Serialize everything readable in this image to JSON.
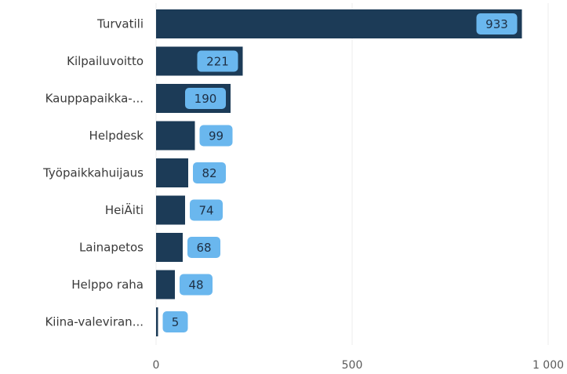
{
  "chart_data": {
    "type": "bar",
    "orientation": "horizontal",
    "categories": [
      "Turvatili",
      "Kilpailuvoitto",
      "Kauppapaikka-...",
      "Helpdesk",
      "Työpaikkahuijaus",
      "HeiÄiti",
      "Lainapetos",
      "Helppo raha",
      "Kiina-valeviran..."
    ],
    "values": [
      933,
      221,
      190,
      99,
      82,
      74,
      68,
      48,
      5
    ],
    "x_ticks": [
      0,
      500,
      1000
    ],
    "x_tick_labels": [
      "0",
      "500",
      "1 000"
    ],
    "xlim": [
      0,
      1000
    ],
    "grid": true,
    "data_labels": true
  },
  "colors": {
    "bar": "#1c3b57",
    "label_bg": "#6ab7ee",
    "label_text": "#1e2f44",
    "grid": "#eeeeee"
  }
}
